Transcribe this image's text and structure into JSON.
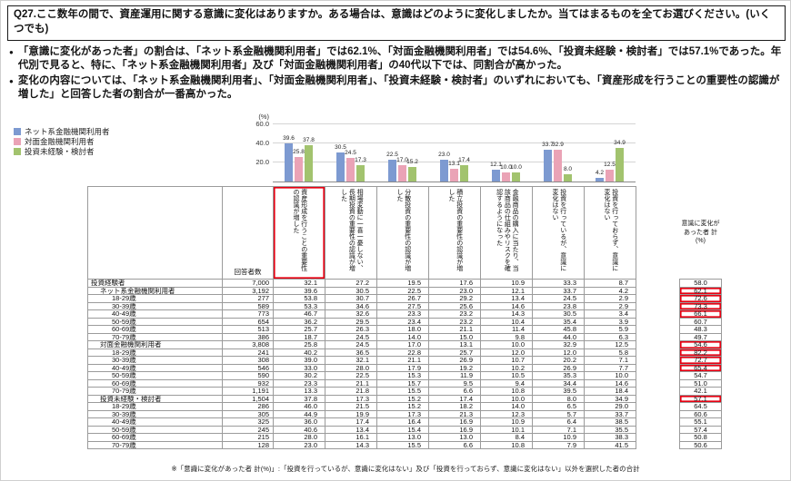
{
  "page": {
    "title": "Q27.ここ数年の間で、資産運用に関する意識に変化はありますか。ある場合は、意識はどのように変化しましたか。当てはまるものを全てお選びください。(いくつでも)",
    "bullets": [
      "「意識に変化があった者」の割合は、「ネット系金融機関利用者」では62.1%、「対面金融機関利用者」では54.6%、「投資未経験・検討者」では57.1%であった。年代別で見ると、特に、「ネット系金融機関利用者」及び「対面金融機関利用者」の40代以下では、同割合が高かった。",
      "変化の内容については、「ネット系金融機関利用者」、「対面金融機関利用者」、「投資未経験・検討者」のいずれにおいても、「資産形成を行うことの重要性の認識が増した」と回答した者の割合が一番高かった。"
    ],
    "footnote": "※「意識に変化があった者 計(%)」:「投資を行っているが、意識に変化はない」及び「投資を行っておらず、意識に変化はない」以外を選択した者の合計"
  },
  "colors": {
    "net": "#7d9ad1",
    "taimen": "#eaa3b6",
    "mikeiken": "#a2c36e",
    "highlight": "#e60012"
  },
  "chart_data": {
    "type": "bar",
    "ylabel": "(%)",
    "ylim": [
      0,
      60
    ],
    "yticks": [
      20,
      40,
      60
    ],
    "legend_position": "top-left",
    "grid": true,
    "categories": [
      "資産形成を行うことの重要性の認識が増した",
      "相場変動に一喜一憂しない、長期投資の重要性の認識が増した",
      "分散投資の重要性の認識が増した",
      "積立投資の重要性の認識が増した",
      "金融商品の購入に当たり、当該商品の仕組みやリスクを確認するようになった",
      "投資を行っているが、意識に変化はない",
      "投資を行っておらず、意識に変化はない"
    ],
    "series": [
      {
        "name": "ネット系金融機関利用者",
        "color_key": "net",
        "values": [
          39.6,
          30.5,
          22.5,
          23.0,
          12.1,
          33.7,
          4.2
        ]
      },
      {
        "name": "対面金融機関利用者",
        "color_key": "taimen",
        "values": [
          25.8,
          24.5,
          17.0,
          13.1,
          10.0,
          32.9,
          12.5
        ]
      },
      {
        "name": "投資未経験・検討者",
        "color_key": "mikeiken",
        "values": [
          37.8,
          17.3,
          15.2,
          17.4,
          10.0,
          8.0,
          34.9
        ]
      }
    ]
  },
  "table": {
    "n_header": "回答者数",
    "col_headers": [
      "資産形成を行うことの重要性の認識が増した",
      "相場変動に一喜一憂しない、長期投資の重要性の認識が増した",
      "分散投資の重要性の認識が増した",
      "積立投資の重要性の認識が増した",
      "金融商品の購入に当たり、当該商品の仕組みやリスクを確認するようになった",
      "投資を行っているが、意識に変化はない",
      "投資を行っておらず、意識に変化はない"
    ],
    "col_header_highlight_index": 0,
    "total_header": "意識に変化があった者 計(%)",
    "rows": [
      {
        "label": "投資経験者",
        "indent": 0,
        "sec": false,
        "n": "7,000",
        "values": [
          "32.1",
          "27.2",
          "19.5",
          "17.6",
          "10.9",
          "33.3",
          "8.7"
        ],
        "total": "58.0",
        "boxed": false
      },
      {
        "label": "ネット系金融機関利用者",
        "indent": 1,
        "sec": true,
        "n": "3,192",
        "values": [
          "39.6",
          "30.5",
          "22.5",
          "23.0",
          "12.1",
          "33.7",
          "4.2"
        ],
        "total": "62.1",
        "boxed": true
      },
      {
        "label": "18-29歳",
        "indent": 2,
        "sec": false,
        "n": "277",
        "values": [
          "53.8",
          "30.7",
          "26.7",
          "29.2",
          "13.4",
          "24.5",
          "2.9"
        ],
        "total": "72.6",
        "boxed": true
      },
      {
        "label": "30-39歳",
        "indent": 2,
        "sec": false,
        "n": "589",
        "values": [
          "53.3",
          "34.6",
          "27.5",
          "25.6",
          "14.6",
          "23.8",
          "2.9"
        ],
        "total": "73.3",
        "boxed": true
      },
      {
        "label": "40-49歳",
        "indent": 2,
        "sec": false,
        "n": "773",
        "values": [
          "46.7",
          "32.6",
          "23.3",
          "23.2",
          "14.3",
          "30.5",
          "3.4"
        ],
        "total": "66.1",
        "boxed": true
      },
      {
        "label": "50-59歳",
        "indent": 2,
        "sec": false,
        "n": "654",
        "values": [
          "36.2",
          "29.5",
          "23.4",
          "23.2",
          "10.4",
          "35.4",
          "3.9"
        ],
        "total": "60.7",
        "boxed": false
      },
      {
        "label": "60-69歳",
        "indent": 2,
        "sec": false,
        "n": "513",
        "values": [
          "25.7",
          "26.3",
          "18.0",
          "21.1",
          "11.4",
          "45.8",
          "5.9"
        ],
        "total": "48.3",
        "boxed": false
      },
      {
        "label": "70-79歳",
        "indent": 2,
        "sec": false,
        "n": "386",
        "values": [
          "18.7",
          "24.5",
          "14.0",
          "15.0",
          "9.8",
          "44.0",
          "6.3"
        ],
        "total": "49.7",
        "boxed": false
      },
      {
        "label": "対面金融機関利用者",
        "indent": 1,
        "sec": true,
        "n": "3,808",
        "values": [
          "25.8",
          "24.5",
          "17.0",
          "13.1",
          "10.0",
          "32.9",
          "12.5"
        ],
        "total": "54.6",
        "boxed": true
      },
      {
        "label": "18-29歳",
        "indent": 2,
        "sec": false,
        "n": "241",
        "values": [
          "40.2",
          "36.5",
          "22.8",
          "25.7",
          "12.0",
          "12.0",
          "5.8"
        ],
        "total": "82.2",
        "boxed": true
      },
      {
        "label": "30-39歳",
        "indent": 2,
        "sec": false,
        "n": "308",
        "values": [
          "39.0",
          "32.1",
          "21.1",
          "26.9",
          "10.7",
          "20.2",
          "7.1"
        ],
        "total": "72.7",
        "boxed": true
      },
      {
        "label": "40-49歳",
        "indent": 2,
        "sec": false,
        "n": "546",
        "values": [
          "33.0",
          "28.0",
          "17.9",
          "19.2",
          "10.2",
          "26.9",
          "7.7"
        ],
        "total": "65.4",
        "boxed": true
      },
      {
        "label": "50-59歳",
        "indent": 2,
        "sec": false,
        "n": "590",
        "values": [
          "30.2",
          "22.5",
          "15.3",
          "11.9",
          "10.5",
          "35.3",
          "10.0"
        ],
        "total": "54.7",
        "boxed": false
      },
      {
        "label": "60-69歳",
        "indent": 2,
        "sec": false,
        "n": "932",
        "values": [
          "23.3",
          "21.1",
          "15.7",
          "9.5",
          "9.4",
          "34.4",
          "14.6"
        ],
        "total": "51.0",
        "boxed": false
      },
      {
        "label": "70-79歳",
        "indent": 2,
        "sec": false,
        "n": "1,191",
        "values": [
          "13.3",
          "21.8",
          "15.5",
          "6.6",
          "10.8",
          "39.5",
          "18.4"
        ],
        "total": "42.1",
        "boxed": false
      },
      {
        "label": "投資未経験・検討者",
        "indent": 1,
        "sec": true,
        "n": "1,504",
        "values": [
          "37.8",
          "17.3",
          "15.2",
          "17.4",
          "10.0",
          "8.0",
          "34.9"
        ],
        "total": "57.1",
        "boxed": true
      },
      {
        "label": "18-29歳",
        "indent": 2,
        "sec": false,
        "n": "286",
        "values": [
          "46.0",
          "21.5",
          "15.2",
          "18.2",
          "14.0",
          "6.5",
          "29.0"
        ],
        "total": "64.5",
        "boxed": false
      },
      {
        "label": "30-39歳",
        "indent": 2,
        "sec": false,
        "n": "305",
        "values": [
          "44.9",
          "19.9",
          "17.3",
          "21.3",
          "12.3",
          "5.7",
          "33.7"
        ],
        "total": "60.6",
        "boxed": false
      },
      {
        "label": "40-49歳",
        "indent": 2,
        "sec": false,
        "n": "325",
        "values": [
          "36.0",
          "17.4",
          "16.4",
          "16.9",
          "10.9",
          "6.4",
          "38.5"
        ],
        "total": "55.1",
        "boxed": false
      },
      {
        "label": "50-59歳",
        "indent": 2,
        "sec": false,
        "n": "245",
        "values": [
          "40.6",
          "13.4",
          "15.4",
          "16.9",
          "10.1",
          "7.1",
          "35.5"
        ],
        "total": "57.4",
        "boxed": false
      },
      {
        "label": "60-69歳",
        "indent": 2,
        "sec": false,
        "n": "215",
        "values": [
          "28.0",
          "16.1",
          "13.0",
          "13.0",
          "8.4",
          "10.9",
          "38.3"
        ],
        "total": "50.8",
        "boxed": false
      },
      {
        "label": "70-79歳",
        "indent": 2,
        "sec": false,
        "n": "128",
        "values": [
          "23.0",
          "14.3",
          "15.5",
          "6.6",
          "10.8",
          "7.9",
          "41.5"
        ],
        "total": "50.6",
        "boxed": false
      }
    ]
  }
}
